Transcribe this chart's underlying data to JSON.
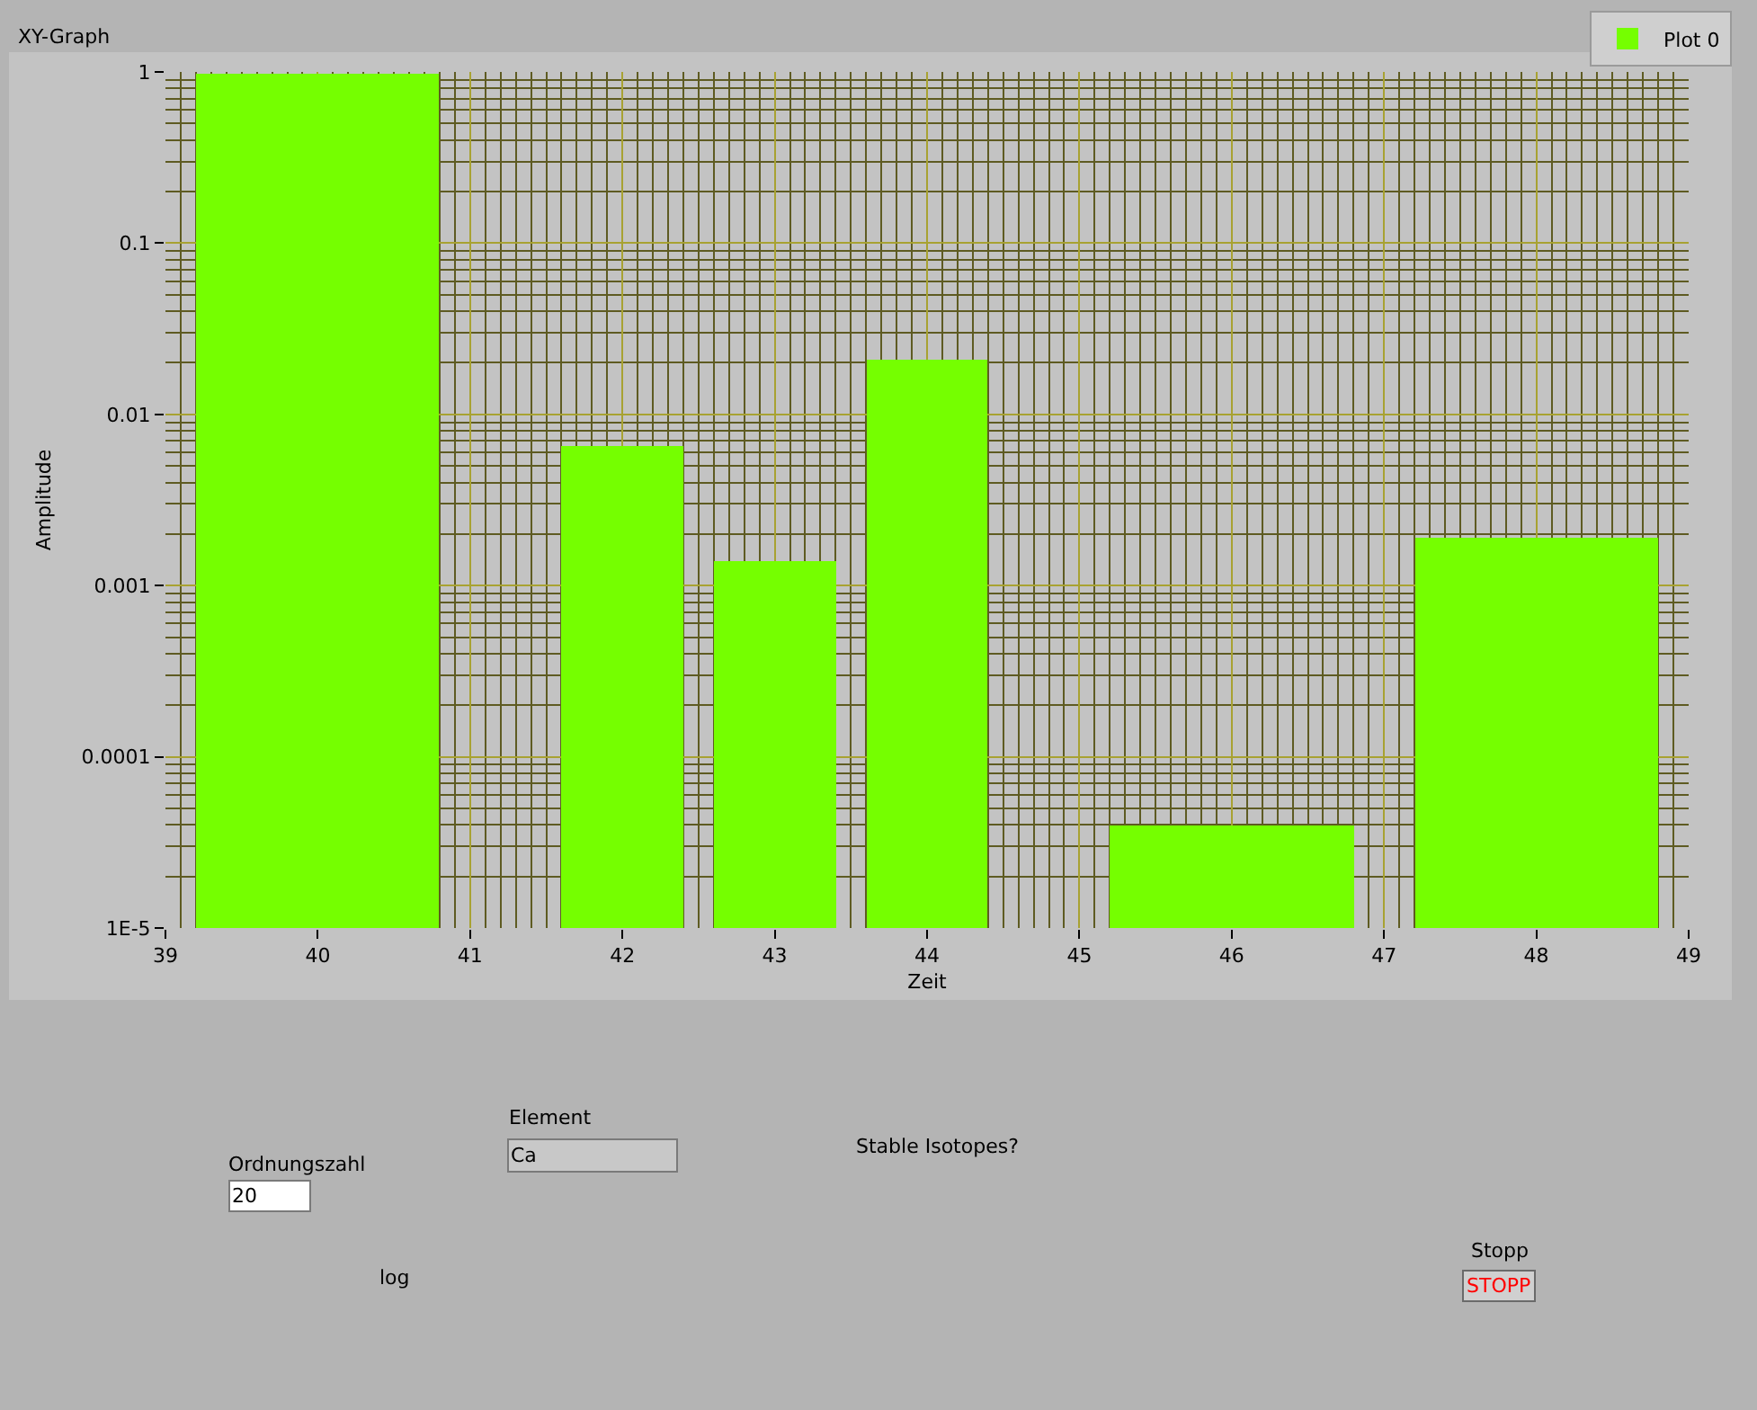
{
  "chart_data": {
    "type": "bar",
    "title": "XY-Graph",
    "xlabel": "Zeit",
    "ylabel": "Amplitude",
    "x": [
      40,
      42,
      43,
      44,
      46,
      48
    ],
    "series": [
      {
        "name": "Plot 0",
        "color": "#75ff00",
        "values": [
          0.97,
          0.0065,
          0.0014,
          0.021,
          4e-05,
          0.0019
        ]
      }
    ],
    "xlim": [
      39,
      49
    ],
    "xticks": [
      39,
      {
        "value": 39.1,
        "label": null
      },
      {
        "value": 39.2,
        "label": null
      },
      {
        "value": 39.3,
        "label": null
      },
      {
        "value": 39.4,
        "label": null
      },
      {
        "value": 39.5,
        "label": null
      },
      {
        "value": 39.6,
        "label": null
      },
      {
        "value": 39.7,
        "label": null
      },
      {
        "value": 39.8,
        "label": null
      },
      {
        "value": 39.9,
        "label": null
      },
      40,
      {
        "value": 40.1,
        "label": null
      },
      {
        "value": 40.2,
        "label": null
      },
      {
        "value": 40.3,
        "label": null
      },
      {
        "value": 40.4,
        "label": null
      },
      {
        "value": 40.5,
        "label": null
      },
      {
        "value": 40.6,
        "label": null
      },
      {
        "value": 40.7,
        "label": null
      },
      {
        "value": 40.8,
        "label": null
      },
      {
        "value": 40.9,
        "label": null
      },
      41,
      {
        "value": 41.1,
        "label": null
      },
      {
        "value": 41.2,
        "label": null
      },
      {
        "value": 41.3,
        "label": null
      },
      {
        "value": 41.4,
        "label": null
      },
      {
        "value": 41.5,
        "label": null
      },
      {
        "value": 41.6,
        "label": null
      },
      {
        "value": 41.7,
        "label": null
      },
      {
        "value": 41.8,
        "label": null
      },
      {
        "value": 41.9,
        "label": null
      },
      42,
      {
        "value": 42.1,
        "label": null
      },
      {
        "value": 42.2,
        "label": null
      },
      {
        "value": 42.3,
        "label": null
      },
      {
        "value": 42.4,
        "label": null
      },
      {
        "value": 42.5,
        "label": null
      },
      {
        "value": 42.6,
        "label": null
      },
      {
        "value": 42.7,
        "label": null
      },
      {
        "value": 42.8,
        "label": null
      },
      {
        "value": 42.9,
        "label": null
      },
      43,
      {
        "value": 43.1,
        "label": null
      },
      {
        "value": 43.2,
        "label": null
      },
      {
        "value": 43.3,
        "label": null
      },
      {
        "value": 43.4,
        "label": null
      },
      {
        "value": 43.5,
        "label": null
      },
      {
        "value": 43.6,
        "label": null
      },
      {
        "value": 43.7,
        "label": null
      },
      {
        "value": 43.8,
        "label": null
      },
      {
        "value": 43.9,
        "label": null
      },
      44,
      {
        "value": 44.1,
        "label": null
      },
      {
        "value": 44.2,
        "label": null
      },
      {
        "value": 44.3,
        "label": null
      },
      {
        "value": 44.4,
        "label": null
      },
      {
        "value": 44.5,
        "label": null
      },
      {
        "value": 44.6,
        "label": null
      },
      {
        "value": 44.7,
        "label": null
      },
      {
        "value": 44.8,
        "label": null
      },
      {
        "value": 44.9,
        "label": null
      },
      45,
      {
        "value": 45.1,
        "label": null
      },
      {
        "value": 45.2,
        "label": null
      },
      {
        "value": 45.3,
        "label": null
      },
      {
        "value": 45.4,
        "label": null
      },
      {
        "value": 45.5,
        "label": null
      },
      {
        "value": 45.6,
        "label": null
      },
      {
        "value": 45.7,
        "label": null
      },
      {
        "value": 45.8,
        "label": null
      },
      {
        "value": 45.9,
        "label": null
      },
      46,
      {
        "value": 46.1,
        "label": null
      },
      {
        "value": 46.2,
        "label": null
      },
      {
        "value": 46.3,
        "label": null
      },
      {
        "value": 46.4,
        "label": null
      },
      {
        "value": 46.5,
        "label": null
      },
      {
        "value": 46.6,
        "label": null
      },
      {
        "value": 46.7,
        "label": null
      },
      {
        "value": 46.8,
        "label": null
      },
      {
        "value": 46.9,
        "label": null
      },
      47,
      {
        "value": 47.1,
        "label": null
      },
      {
        "value": 47.2,
        "label": null
      },
      {
        "value": 47.3,
        "label": null
      },
      {
        "value": 47.4,
        "label": null
      },
      {
        "value": 47.5,
        "label": null
      },
      {
        "value": 47.6,
        "label": null
      },
      {
        "value": 47.7,
        "label": null
      },
      {
        "value": 47.8,
        "label": null
      },
      {
        "value": 47.9,
        "label": null
      },
      48,
      {
        "value": 48.1,
        "label": null
      },
      {
        "value": 48.2,
        "label": null
      },
      {
        "value": 48.3,
        "label": null
      },
      {
        "value": 48.4,
        "label": null
      },
      {
        "value": 48.5,
        "label": null
      },
      {
        "value": 48.6,
        "label": null
      },
      {
        "value": 48.7,
        "label": null
      },
      {
        "value": 48.8,
        "label": null
      },
      {
        "value": 48.9,
        "label": null
      },
      49
    ],
    "ylim": [
      1e-05,
      1
    ],
    "yticks": [
      {
        "value": 1e-05,
        "label": "1E-5"
      },
      {
        "value": 2e-05,
        "label": null
      },
      {
        "value": 3e-05,
        "label": null
      },
      {
        "value": 4e-05,
        "label": null
      },
      {
        "value": 5e-05,
        "label": null
      },
      {
        "value": 6e-05,
        "label": null
      },
      {
        "value": 7e-05,
        "label": null
      },
      {
        "value": 8e-05,
        "label": null
      },
      {
        "value": 9e-05,
        "label": null
      },
      0.0001,
      {
        "value": 0.0002,
        "label": null
      },
      {
        "value": 0.0003,
        "label": null
      },
      {
        "value": 0.0004,
        "label": null
      },
      {
        "value": 0.0005,
        "label": null
      },
      {
        "value": 0.0006,
        "label": null
      },
      {
        "value": 0.0007,
        "label": null
      },
      {
        "value": 0.0008,
        "label": null
      },
      {
        "value": 0.0009,
        "label": null
      },
      0.001,
      {
        "value": 0.002,
        "label": null
      },
      {
        "value": 0.003,
        "label": null
      },
      {
        "value": 0.004,
        "label": null
      },
      {
        "value": 0.005,
        "label": null
      },
      {
        "value": 0.006,
        "label": null
      },
      {
        "value": 0.007,
        "label": null
      },
      {
        "value": 0.008,
        "label": null
      },
      {
        "value": 0.009,
        "label": null
      },
      0.01,
      {
        "value": 0.02,
        "label": null
      },
      {
        "value": 0.03,
        "label": null
      },
      {
        "value": 0.04,
        "label": null
      },
      {
        "value": 0.05,
        "label": null
      },
      {
        "value": 0.06,
        "label": null
      },
      {
        "value": 0.07,
        "label": null
      },
      {
        "value": 0.08,
        "label": null
      },
      {
        "value": 0.09,
        "label": null
      },
      0.1,
      {
        "value": 0.2,
        "label": null
      },
      {
        "value": 0.3,
        "label": null
      },
      {
        "value": 0.4,
        "label": null
      },
      {
        "value": 0.5,
        "label": null
      },
      {
        "value": 0.6,
        "label": null
      },
      {
        "value": 0.7,
        "label": null
      },
      {
        "value": 0.8,
        "label": null
      },
      {
        "value": 0.9,
        "label": null
      },
      1
    ],
    "log": true,
    "grid": true,
    "legend": "top right",
    "annotations": [
      "Ordnungszahl",
      "20",
      "Element",
      "Ca",
      "Stable Isotopes?",
      "log",
      "Stopp",
      "STOPP"
    ]
  }
}
